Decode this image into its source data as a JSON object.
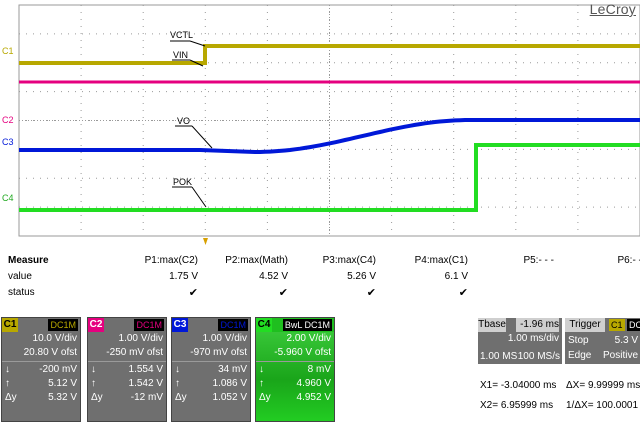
{
  "brand": "LeCroy",
  "colors": {
    "c1": "#b8a800",
    "c2": "#e5007f",
    "c3": "#0018d8",
    "c4": "#22dd22",
    "grid": "#9a9a9a"
  },
  "traces": {
    "c1_label": "C1",
    "c2_label": "C2",
    "c3_label": "C3",
    "c4_label": "C4",
    "vctl": "VCTL",
    "vin": "VIN",
    "vo": "VO",
    "pok": "POK"
  },
  "measure": {
    "title": "Measure",
    "row_value": "value",
    "row_status": "status",
    "columns": [
      {
        "name": "P1:max(C2)",
        "value": "1.75 V",
        "status": "✔"
      },
      {
        "name": "P2:max(Math)",
        "value": "4.52 V",
        "status": "✔"
      },
      {
        "name": "P3:max(C4)",
        "value": "5.26 V",
        "status": "✔"
      },
      {
        "name": "P4:max(C1)",
        "value": "6.1 V",
        "status": "✔"
      },
      {
        "name": "P5:- - -",
        "value": "",
        "status": ""
      },
      {
        "name": "P6:- - -",
        "value": "",
        "status": ""
      }
    ]
  },
  "channels": [
    {
      "tag": "C1",
      "coupling": "DC1M",
      "vdiv": "10.0 V/div",
      "ofst": "20.80 V ofst",
      "down": "-200 mV",
      "up": "5.12 V",
      "dy": "5.32 V"
    },
    {
      "tag": "C2",
      "coupling": "DC1M",
      "vdiv": "1.00 V/div",
      "ofst": "-250 mV ofst",
      "down": "1.554 V",
      "up": "1.542 V",
      "dy": "-12 mV"
    },
    {
      "tag": "C3",
      "coupling": "DC1M",
      "vdiv": "1.00 V/div",
      "ofst": "-970 mV ofst",
      "down": "34 mV",
      "up": "1.086 V",
      "dy": "1.052 V"
    },
    {
      "tag": "C4",
      "coupling": "BwL DC1M",
      "vdiv": "2.00 V/div",
      "ofst": "-5.960 V ofst",
      "down": "8 mV",
      "up": "4.960 V",
      "dy": "4.952 V"
    }
  ],
  "symbols": {
    "down": "↓",
    "up": "↑",
    "dy": "Δy"
  },
  "timebase": {
    "label": "Tbase",
    "value": "-1.96 ms",
    "div": "1.00 ms/div",
    "points": "1.00 MS",
    "rate": "100 MS/s"
  },
  "trigger": {
    "label": "Trigger",
    "channel": "C1",
    "coupling": "DC",
    "mode": "Stop",
    "level": "5.3 V",
    "type": "Edge",
    "slope": "Positive"
  },
  "cursors": {
    "x1": "X1= -3.04000 ms",
    "dx": "ΔX=  9.99999 ms",
    "x2": "X2=  6.95999 ms",
    "freq": "1/ΔX=  100.0001 Hz"
  }
}
